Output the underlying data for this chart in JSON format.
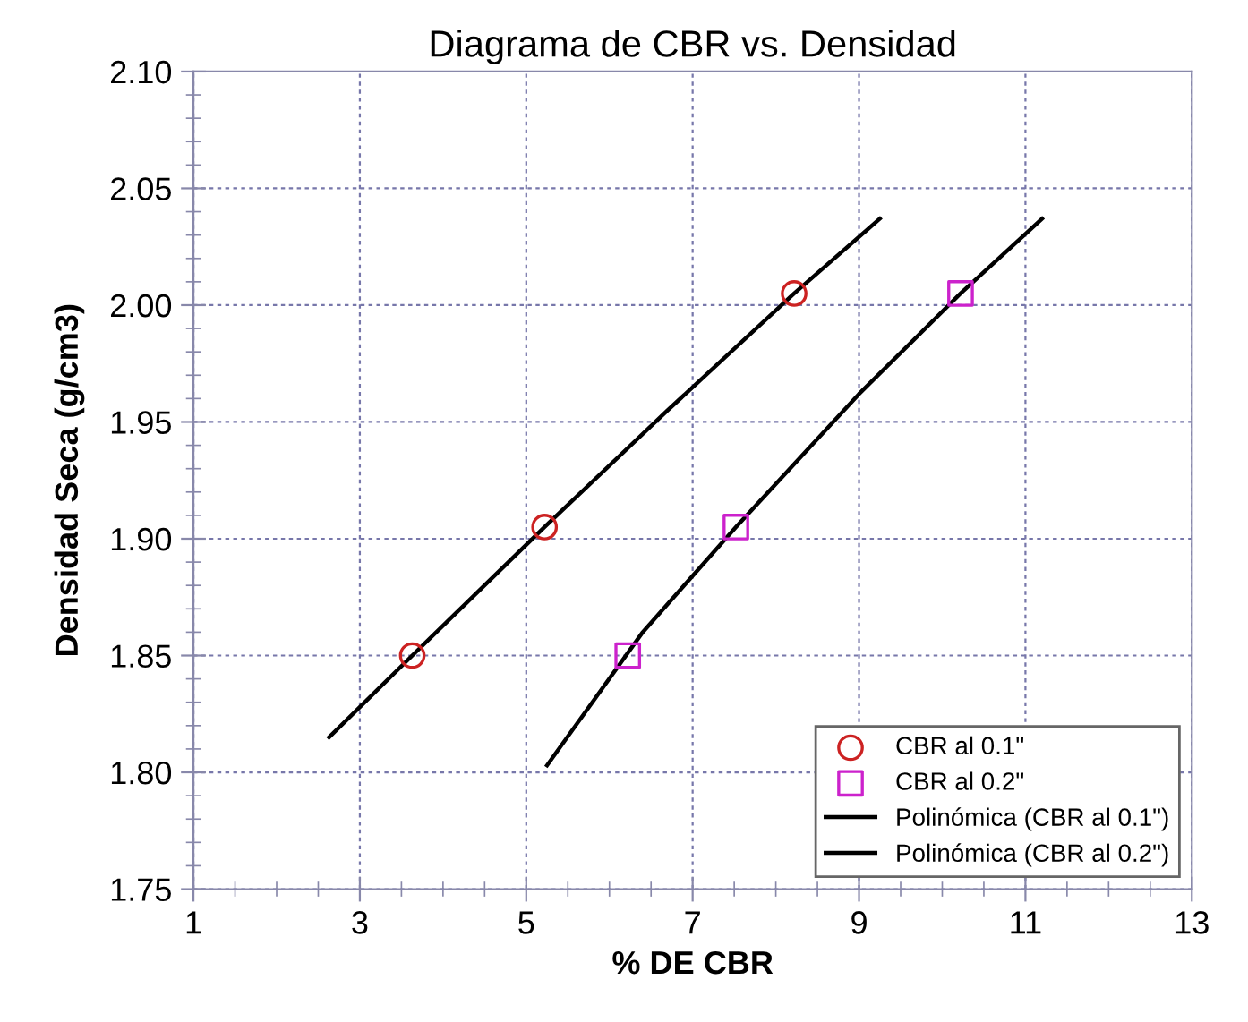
{
  "chart_data": {
    "type": "scatter",
    "title": "Diagrama de CBR vs. Densidad",
    "xlabel": "% DE CBR",
    "ylabel": "Densidad Seca (g/cm3)",
    "xlim": [
      1,
      13
    ],
    "xticks": [
      1,
      3,
      5,
      7,
      9,
      11,
      13
    ],
    "ylim": [
      1.75,
      2.1
    ],
    "yticks": [
      1.75,
      {
        "value": 1.8,
        "label": "1.80"
      },
      1.85,
      {
        "value": 1.9,
        "label": "1.90"
      },
      1.95,
      {
        "value": 2.0,
        "label": "2.00"
      },
      2.05,
      {
        "value": 2.1,
        "label": "2.10"
      }
    ],
    "grid": true,
    "legend": "bottom right",
    "series": [
      {
        "name": "CBR al 0.1\"",
        "marker": "circle",
        "color": "#cc2222",
        "x": [
          3.63,
          5.22,
          8.22
        ],
        "values": [
          1.85,
          1.905,
          2.005
        ]
      },
      {
        "name": "CBR al 0.2\"",
        "marker": "square",
        "color": "#cc22cc",
        "x": [
          6.22,
          7.52,
          10.22
        ],
        "values": [
          1.85,
          1.905,
          2.005
        ]
      },
      {
        "name": "Polinómica (CBR al 0.1\")",
        "type": "line",
        "color": "#000000",
        "x": [
          2.63,
          3.63,
          5.22,
          6.7,
          8.22,
          9.25
        ],
        "values": [
          1.815,
          1.85,
          1.905,
          1.955,
          2.005,
          2.037
        ]
      },
      {
        "name": "Polinómica (CBR al 0.2\")",
        "type": "line",
        "color": "#000000",
        "x": [
          5.25,
          6.4,
          7.52,
          9.0,
          10.22,
          11.2
        ],
        "values": [
          1.803,
          1.86,
          1.905,
          1.962,
          2.005,
          2.037
        ]
      }
    ]
  }
}
